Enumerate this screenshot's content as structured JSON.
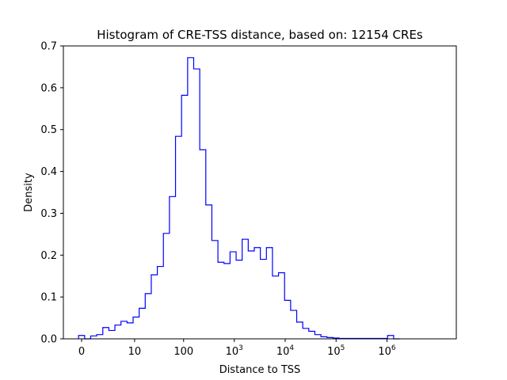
{
  "chart_data": {
    "type": "histogram",
    "title": "Histogram of CRE-TSS distance, based on: 12154 CREs",
    "xlabel": "Distance to TSS",
    "ylabel": "Density",
    "ylim": [
      0,
      0.7
    ],
    "y_ticks": [
      "0.0",
      "0.1",
      "0.2",
      "0.3",
      "0.4",
      "0.5",
      "0.6",
      "0.7"
    ],
    "x_scale": "log",
    "x_ticks": [
      {
        "value": 0,
        "label": "0"
      },
      {
        "value": 10,
        "label": "10"
      },
      {
        "value": 100,
        "label": "100"
      },
      {
        "value": 1000,
        "base": "10",
        "exp": "3"
      },
      {
        "value": 10000,
        "base": "10",
        "exp": "4"
      },
      {
        "value": 100000,
        "base": "10",
        "exp": "5"
      },
      {
        "value": 1000000,
        "base": "10",
        "exp": "6"
      }
    ],
    "grid": false,
    "series_color": "#0000ff",
    "densities": [
      0.008,
      0.0,
      0.007,
      0.01,
      0.027,
      0.02,
      0.033,
      0.042,
      0.038,
      0.052,
      0.073,
      0.108,
      0.153,
      0.173,
      0.252,
      0.34,
      0.484,
      0.582,
      0.672,
      0.645,
      0.452,
      0.32,
      0.235,
      0.183,
      0.18,
      0.208,
      0.188,
      0.238,
      0.21,
      0.218,
      0.19,
      0.218,
      0.15,
      0.158,
      0.092,
      0.068,
      0.04,
      0.025,
      0.018,
      0.01,
      0.005,
      0.003,
      0.002,
      0.001,
      0.001,
      0.001,
      0.001,
      0.001,
      0.001,
      0.001,
      0.001,
      0.008,
      0.0
    ]
  }
}
